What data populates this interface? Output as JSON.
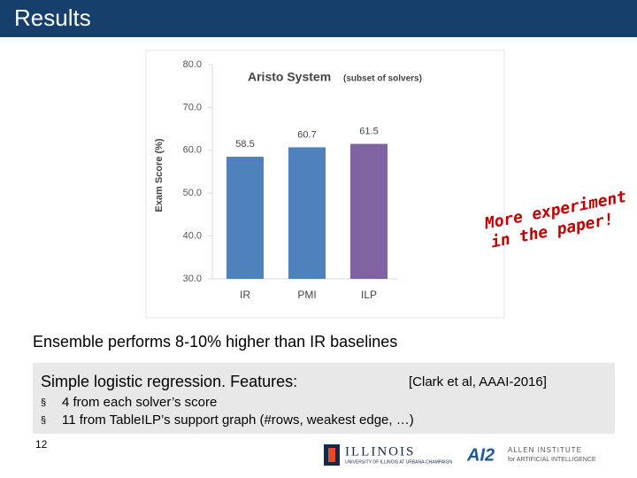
{
  "slide_title": "Results",
  "chart_data": {
    "type": "bar",
    "title": "Aristo System",
    "subtitle": "(subset of solvers)",
    "y_label": "Exam Score (%)",
    "categories": [
      "IR",
      "PMI",
      "ILP"
    ],
    "values": [
      58.5,
      60.7,
      61.5
    ],
    "colors": [
      "#4f81bd",
      "#4f81bd",
      "#8064a2"
    ],
    "ylim": [
      30,
      80
    ],
    "yticks": [
      {
        "value": 30,
        "label": "30.0"
      },
      {
        "value": 40,
        "label": "40.0"
      },
      {
        "value": 50,
        "label": "50.0"
      },
      {
        "value": 60,
        "label": "60.0"
      },
      {
        "value": 70,
        "label": "70.0"
      },
      {
        "value": 80,
        "label": "80.0"
      }
    ],
    "grid": false
  },
  "annotation": [
    "More experiment",
    "in the paper!"
  ],
  "caption": "Ensemble performs 8-10% higher than IR baselines",
  "box": {
    "heading": "Simple logistic regression.  Features:",
    "citation": "[Clark et al, AAAI-2016]",
    "bullets": [
      "4 from each solver’s score",
      "11 from TableILP’s support graph (#rows, weakest edge, …)"
    ]
  },
  "page_number": "12",
  "logos": {
    "illinois": "ILLINOIS",
    "illinois_sub": "UNIVERSITY OF ILLINOIS AT URBANA-CHAMPAIGN",
    "ai2": "AI2",
    "ai2_name": "ALLEN INSTITUTE",
    "ai2_sub": "for ARTIFICIAL INTELLIGENCE"
  }
}
